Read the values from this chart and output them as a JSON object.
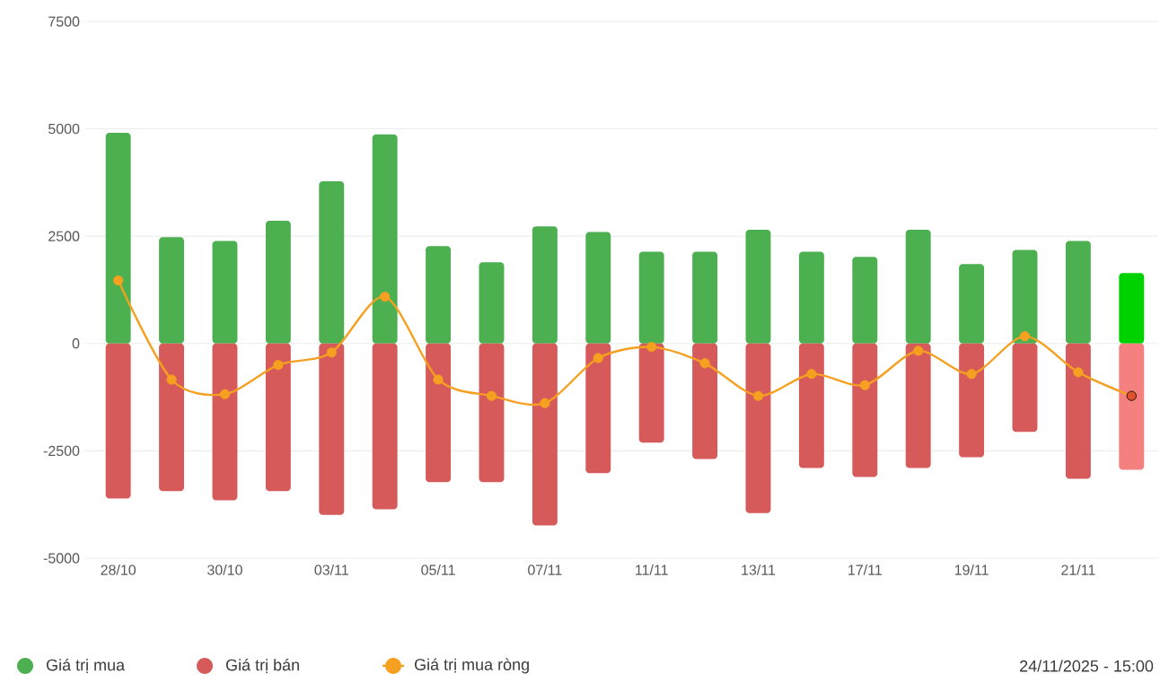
{
  "chart_data": {
    "type": "bar",
    "categories": [
      "28/10",
      null,
      "30/10",
      null,
      "03/11",
      null,
      "05/11",
      null,
      "07/11",
      null,
      "11/11",
      null,
      "13/11",
      null,
      "17/11",
      null,
      "19/11",
      null,
      "21/11",
      null
    ],
    "series": [
      {
        "name": "Giá trị mua",
        "color": "#4caf50",
        "colors": [
          "#4caf50",
          "#4caf50",
          "#4caf50",
          "#4caf50",
          "#4caf50",
          "#4caf50",
          "#4caf50",
          "#4caf50",
          "#4caf50",
          "#4caf50",
          "#4caf50",
          "#4caf50",
          "#4caf50",
          "#4caf50",
          "#4caf50",
          "#4caf50",
          "#4caf50",
          "#4caf50",
          "#4caf50",
          "#00d200"
        ],
        "values": [
          4910,
          2480,
          2390,
          2860,
          3780,
          4870,
          2270,
          1890,
          2730,
          2600,
          2140,
          2140,
          2650,
          2140,
          2020,
          2650,
          1850,
          2180,
          2390,
          1640
        ]
      },
      {
        "name": "Giá trị bán",
        "color": "#d65a5a",
        "colors": [
          "#d65a5a",
          "#d65a5a",
          "#d65a5a",
          "#d65a5a",
          "#d65a5a",
          "#d65a5a",
          "#d65a5a",
          "#d65a5a",
          "#d65a5a",
          "#d65a5a",
          "#d65a5a",
          "#d65a5a",
          "#d65a5a",
          "#d65a5a",
          "#d65a5a",
          "#d65a5a",
          "#d65a5a",
          "#d65a5a",
          "#d65a5a",
          "#f58080"
        ],
        "values": [
          -3610,
          -3440,
          -3650,
          -3440,
          -3990,
          -3860,
          -3230,
          -3230,
          -4240,
          -3020,
          -2310,
          -2690,
          -3950,
          -2900,
          -3110,
          -2900,
          -2650,
          -2060,
          -3150,
          -2940
        ]
      },
      {
        "name": "Giá trị mua ròng",
        "type": "line",
        "color": "#f5a020",
        "marker": "circle",
        "line_style": "solid",
        "colors": [
          "#f5a020",
          "#f5a020",
          "#f5a020",
          "#f5a020",
          "#f5a020",
          "#f5a020",
          "#f5a020",
          "#f5a020",
          "#f5a020",
          "#f5a020",
          "#f5a020",
          "#f5a020",
          "#f5a020",
          "#f5a020",
          "#f5a020",
          "#f5a020",
          "#f5a020",
          "#f5a020",
          "#f5a020",
          "#e0502a"
        ],
        "values": [
          1470,
          -840,
          -1180,
          -500,
          -210,
          1090,
          -840,
          -1220,
          -1390,
          -340,
          -80,
          -460,
          -1220,
          -710,
          -970,
          -170,
          -710,
          170,
          -670,
          -1220
        ]
      }
    ],
    "stacked": true,
    "ylim": [
      -5000,
      7500
    ],
    "yticks": [
      -5000,
      -2500,
      0,
      2500,
      5000,
      7500
    ],
    "grid": "y",
    "legend": "bottom",
    "annotations": [
      "24/11/2025 - 15:00"
    ]
  }
}
